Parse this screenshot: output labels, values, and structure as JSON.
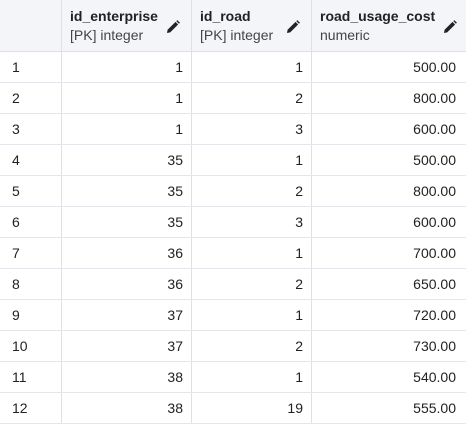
{
  "columns": [
    {
      "name": "id_enterprise",
      "type": "[PK] integer",
      "editable_icon": "pencil-icon"
    },
    {
      "name": "id_road",
      "type": "[PK] integer",
      "editable_icon": "pencil-icon"
    },
    {
      "name": "road_usage_cost",
      "type": "numeric",
      "editable_icon": "pencil-icon"
    }
  ],
  "rows": [
    {
      "n": "1",
      "id_enterprise": "1",
      "id_road": "1",
      "road_usage_cost": "500.00"
    },
    {
      "n": "2",
      "id_enterprise": "1",
      "id_road": "2",
      "road_usage_cost": "800.00"
    },
    {
      "n": "3",
      "id_enterprise": "1",
      "id_road": "3",
      "road_usage_cost": "600.00"
    },
    {
      "n": "4",
      "id_enterprise": "35",
      "id_road": "1",
      "road_usage_cost": "500.00"
    },
    {
      "n": "5",
      "id_enterprise": "35",
      "id_road": "2",
      "road_usage_cost": "800.00"
    },
    {
      "n": "6",
      "id_enterprise": "35",
      "id_road": "3",
      "road_usage_cost": "600.00"
    },
    {
      "n": "7",
      "id_enterprise": "36",
      "id_road": "1",
      "road_usage_cost": "700.00"
    },
    {
      "n": "8",
      "id_enterprise": "36",
      "id_road": "2",
      "road_usage_cost": "650.00"
    },
    {
      "n": "9",
      "id_enterprise": "37",
      "id_road": "1",
      "road_usage_cost": "720.00"
    },
    {
      "n": "10",
      "id_enterprise": "37",
      "id_road": "2",
      "road_usage_cost": "730.00"
    },
    {
      "n": "11",
      "id_enterprise": "38",
      "id_road": "1",
      "road_usage_cost": "540.00"
    },
    {
      "n": "12",
      "id_enterprise": "38",
      "id_road": "19",
      "road_usage_cost": "555.00"
    }
  ]
}
